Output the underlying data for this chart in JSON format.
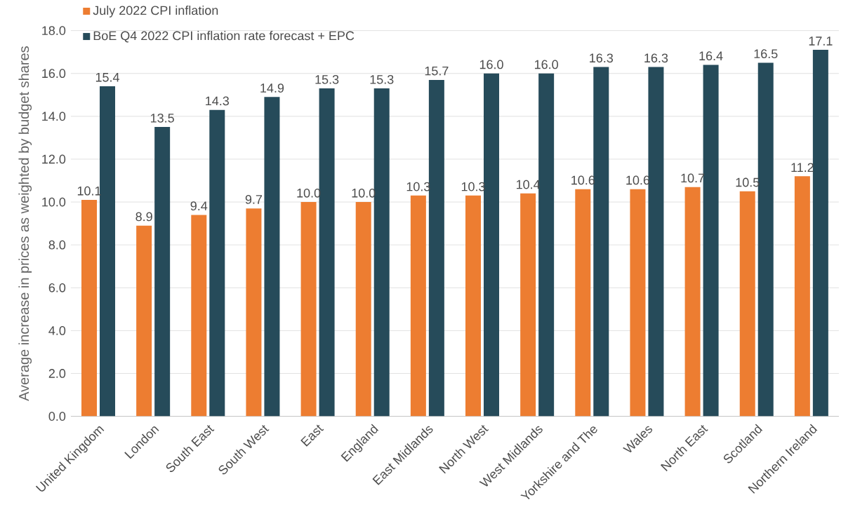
{
  "chart_data": {
    "type": "bar",
    "ylabel": "Average increase in prices as weighted by budget shares",
    "categories": [
      "United Kingdom",
      "London",
      "South East",
      "South West",
      "East",
      "England",
      "East Midlands",
      "North West",
      "West Midlands",
      "Yorkshire and The",
      "Wales",
      "North East",
      "Scotland",
      "Northern Ireland"
    ],
    "series": [
      {
        "name": "July 2022 CPI inflation",
        "color": "#ed7d31",
        "values": [
          10.1,
          8.9,
          9.4,
          9.7,
          10.0,
          10.0,
          10.3,
          10.3,
          10.4,
          10.6,
          10.6,
          10.7,
          10.5,
          11.2
        ],
        "value_labels": [
          "10.1",
          "8.9",
          "9.4",
          "9.7",
          "10.0",
          "10.0",
          "10.3",
          "10.3",
          "10.4",
          "10.6",
          "10.6",
          "10.7",
          "10.5",
          "11.2"
        ]
      },
      {
        "name": "BoE Q4 2022 CPI inflation rate forecast + EPC",
        "color": "#264b5a",
        "values": [
          15.4,
          13.5,
          14.3,
          14.9,
          15.3,
          15.3,
          15.7,
          16.0,
          16.0,
          16.3,
          16.3,
          16.4,
          16.5,
          17.1
        ],
        "value_labels": [
          "15.4",
          "13.5",
          "14.3",
          "14.9",
          "15.3",
          "15.3",
          "15.7",
          "16.0",
          "16.0",
          "16.3",
          "16.3",
          "16.4",
          "16.5",
          "17.1"
        ]
      }
    ],
    "ylim": [
      0,
      18
    ],
    "yticks": [
      {
        "value": 0,
        "label": "0.0"
      },
      {
        "value": 2,
        "label": "2.0"
      },
      {
        "value": 4,
        "label": "4.0"
      },
      {
        "value": 6,
        "label": "6.0"
      },
      {
        "value": 8,
        "label": "8.0"
      },
      {
        "value": 10,
        "label": "10.0"
      },
      {
        "value": 12,
        "label": "12.0"
      },
      {
        "value": 14,
        "label": "14.0"
      },
      {
        "value": 16,
        "label": "16.0"
      },
      {
        "value": 18,
        "label": "18.0"
      }
    ],
    "grid": "y",
    "legend": "top left"
  }
}
